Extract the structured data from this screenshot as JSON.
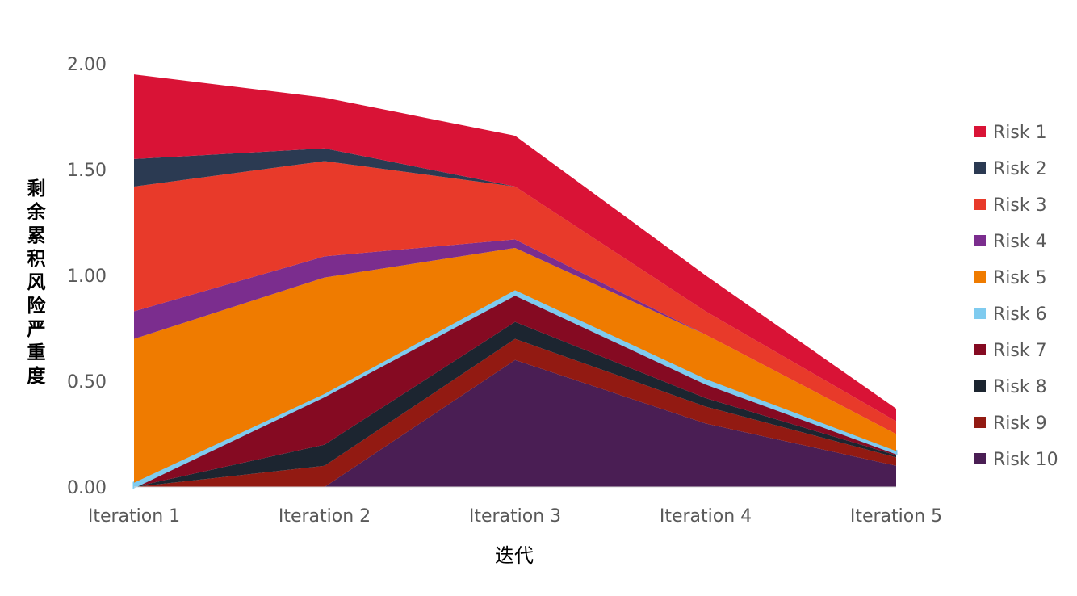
{
  "chart_data": {
    "type": "area",
    "stacked": true,
    "title": "",
    "xlabel": "迭代",
    "ylabel": "剩余累积风险严重度",
    "ylim": [
      0,
      2
    ],
    "yticks": [
      "0.00",
      "0.50",
      "1.00",
      "1.50",
      "2.00"
    ],
    "ytick_values": [
      0,
      0.5,
      1,
      1.5,
      2
    ],
    "categories": [
      "Iteration 1",
      "Iteration 2",
      "Iteration 3",
      "Iteration 4",
      "Iteration 5"
    ],
    "legend_position": "right",
    "grid": false,
    "series": [
      {
        "name": "Risk 1",
        "color": "#D91336",
        "values": [
          0.4,
          0.24,
          0.24,
          0.17,
          0.06
        ]
      },
      {
        "name": "Risk 2",
        "color": "#2B3A52",
        "values": [
          0.13,
          0.06,
          0.0,
          0.0,
          0.0
        ]
      },
      {
        "name": "Risk 3",
        "color": "#E83A2A",
        "values": [
          0.59,
          0.45,
          0.25,
          0.11,
          0.06
        ]
      },
      {
        "name": "Risk 4",
        "color": "#7B2D8E",
        "values": [
          0.13,
          0.1,
          0.04,
          0.0,
          0.0
        ]
      },
      {
        "name": "Risk 5",
        "color": "#EF7B00",
        "values": [
          0.68,
          0.55,
          0.2,
          0.21,
          0.08
        ]
      },
      {
        "name": "Risk 6",
        "color": "#7FCBEF",
        "values": [
          0.02,
          0.01,
          0.02,
          0.02,
          0.01
        ]
      },
      {
        "name": "Risk 7",
        "color": "#850A22",
        "values": [
          0.0,
          0.23,
          0.13,
          0.07,
          0.01
        ]
      },
      {
        "name": "Risk 8",
        "color": "#1C2530",
        "values": [
          0.0,
          0.1,
          0.08,
          0.04,
          0.01
        ]
      },
      {
        "name": "Risk 9",
        "color": "#921A12",
        "values": [
          0.0,
          0.1,
          0.1,
          0.08,
          0.04
        ]
      },
      {
        "name": "Risk 10",
        "color": "#4A1E54",
        "values": [
          0.0,
          0.0,
          0.6,
          0.3,
          0.1
        ]
      }
    ]
  }
}
